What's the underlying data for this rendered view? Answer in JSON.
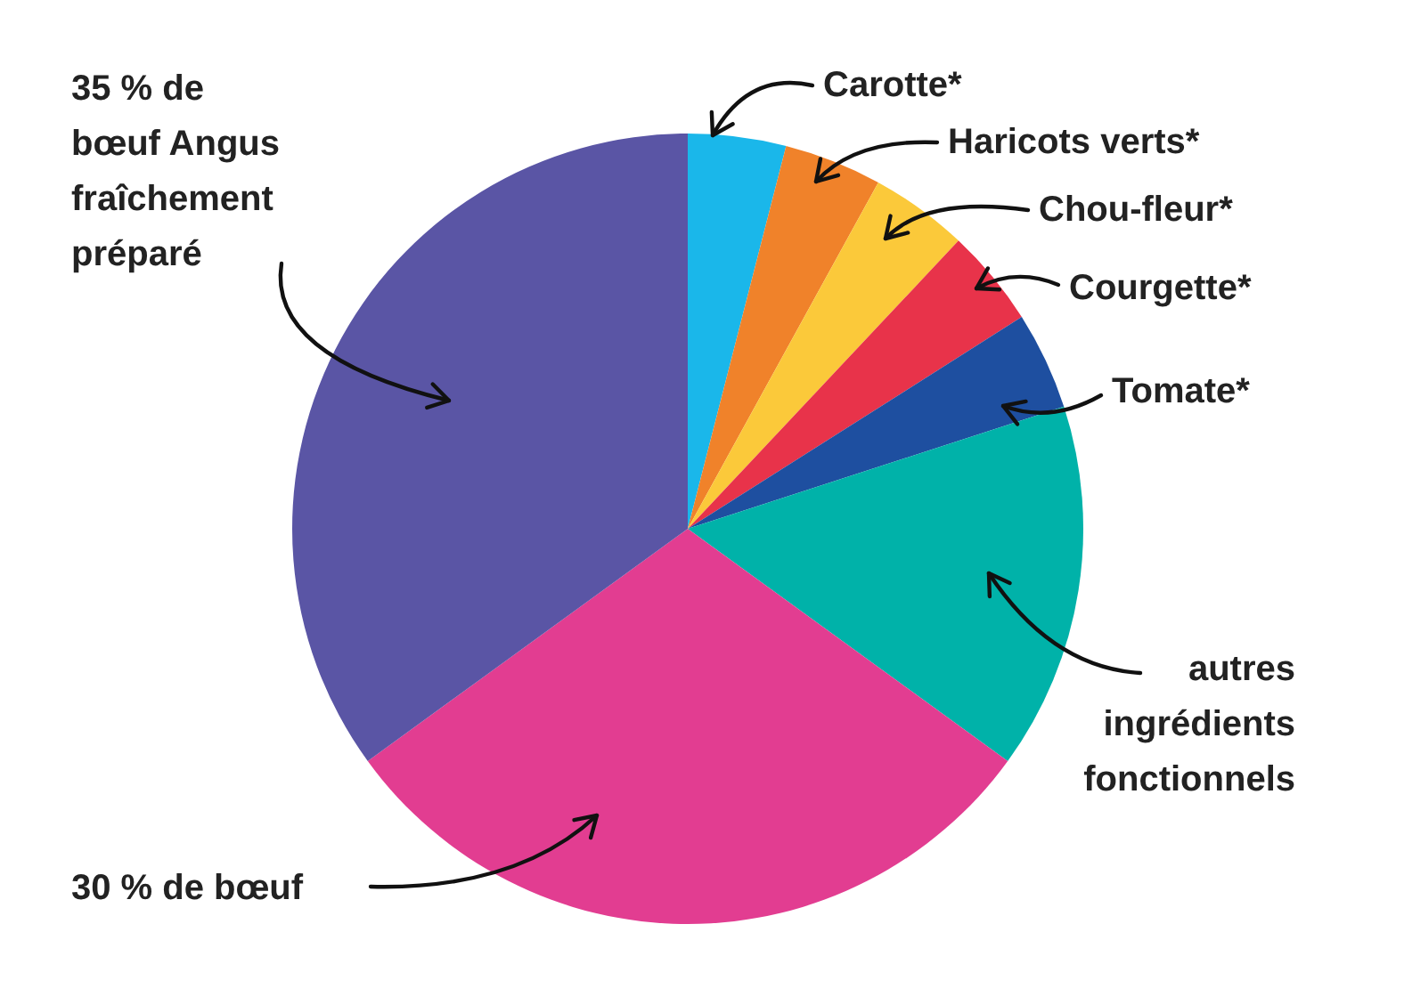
{
  "chart_data": {
    "type": "pie",
    "categories": [
      "Carotte*",
      "Haricots verts*",
      "Chou-fleur*",
      "Courgette*",
      "Tomate*",
      "autres\ningrédients\nfonctionnels",
      "30 % de bœuf",
      "35 % de\nbœuf Angus\nfraîchement\npréparé"
    ],
    "values": [
      4,
      4,
      4,
      4,
      4,
      15,
      30,
      35
    ],
    "colors": [
      "#1ab7ea",
      "#f0822a",
      "#fbc93a",
      "#e8334a",
      "#1e4fa0",
      "#00b2a9",
      "#e23d91",
      "#5a55a5"
    ],
    "legend": false
  }
}
